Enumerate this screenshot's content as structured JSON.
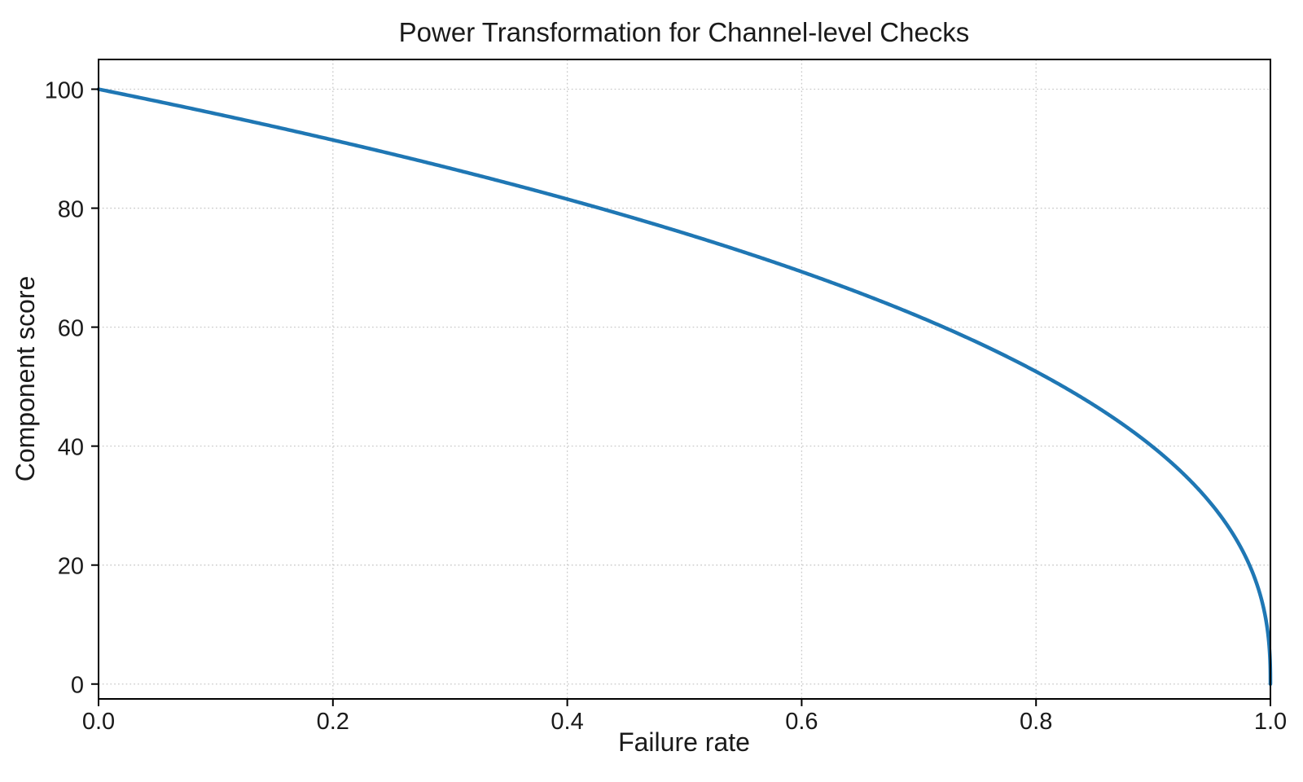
{
  "chart_data": {
    "type": "line",
    "title": "Power Transformation for Channel-level Checks",
    "xlabel": "Failure rate",
    "ylabel": "Component score",
    "xlim": [
      0.0,
      1.0
    ],
    "ylim": [
      -2.5,
      105
    ],
    "grid": "dotted",
    "legend": "none",
    "line_color": "#1f77b4",
    "grid_color": "#c9c9c9",
    "spine_color": "#000000",
    "text_color": "#1a1a1a",
    "background_color": "#ffffff",
    "line_width": 4.5,
    "x_ticks": [
      {
        "label": "0.0",
        "value": 0.0
      },
      {
        "label": "0.2",
        "value": 0.2
      },
      {
        "label": "0.4",
        "value": 0.4
      },
      {
        "label": "0.6",
        "value": 0.6
      },
      {
        "label": "0.8",
        "value": 0.8
      },
      {
        "label": "1.0",
        "value": 1.0
      }
    ],
    "y_ticks": [
      {
        "label": "0",
        "value": 0
      },
      {
        "label": "20",
        "value": 20
      },
      {
        "label": "40",
        "value": 40
      },
      {
        "label": "60",
        "value": 60
      },
      {
        "label": "80",
        "value": 80
      },
      {
        "label": "100",
        "value": 100
      }
    ],
    "curve": {
      "formula": "score = 100 * (1 - failure_rate)^0.4",
      "scale": 100,
      "exponent": 0.4,
      "x_start": 0.0,
      "x_end": 1.0
    },
    "points": [
      [
        0.0,
        100.0
      ],
      [
        0.05,
        98.0
      ],
      [
        0.1,
        95.9
      ],
      [
        0.15,
        93.7
      ],
      [
        0.2,
        91.5
      ],
      [
        0.25,
        89.1
      ],
      [
        0.3,
        86.7
      ],
      [
        0.35,
        84.2
      ],
      [
        0.4,
        81.5
      ],
      [
        0.45,
        78.7
      ],
      [
        0.5,
        75.8
      ],
      [
        0.55,
        72.7
      ],
      [
        0.6,
        69.3
      ],
      [
        0.65,
        65.7
      ],
      [
        0.7,
        61.8
      ],
      [
        0.75,
        57.4
      ],
      [
        0.8,
        52.5
      ],
      [
        0.85,
        46.8
      ],
      [
        0.9,
        39.8
      ],
      [
        0.95,
        30.2
      ],
      [
        0.98,
        20.9
      ],
      [
        0.99,
        15.8
      ],
      [
        0.999,
        6.3
      ],
      [
        1.0,
        0.0
      ]
    ]
  }
}
